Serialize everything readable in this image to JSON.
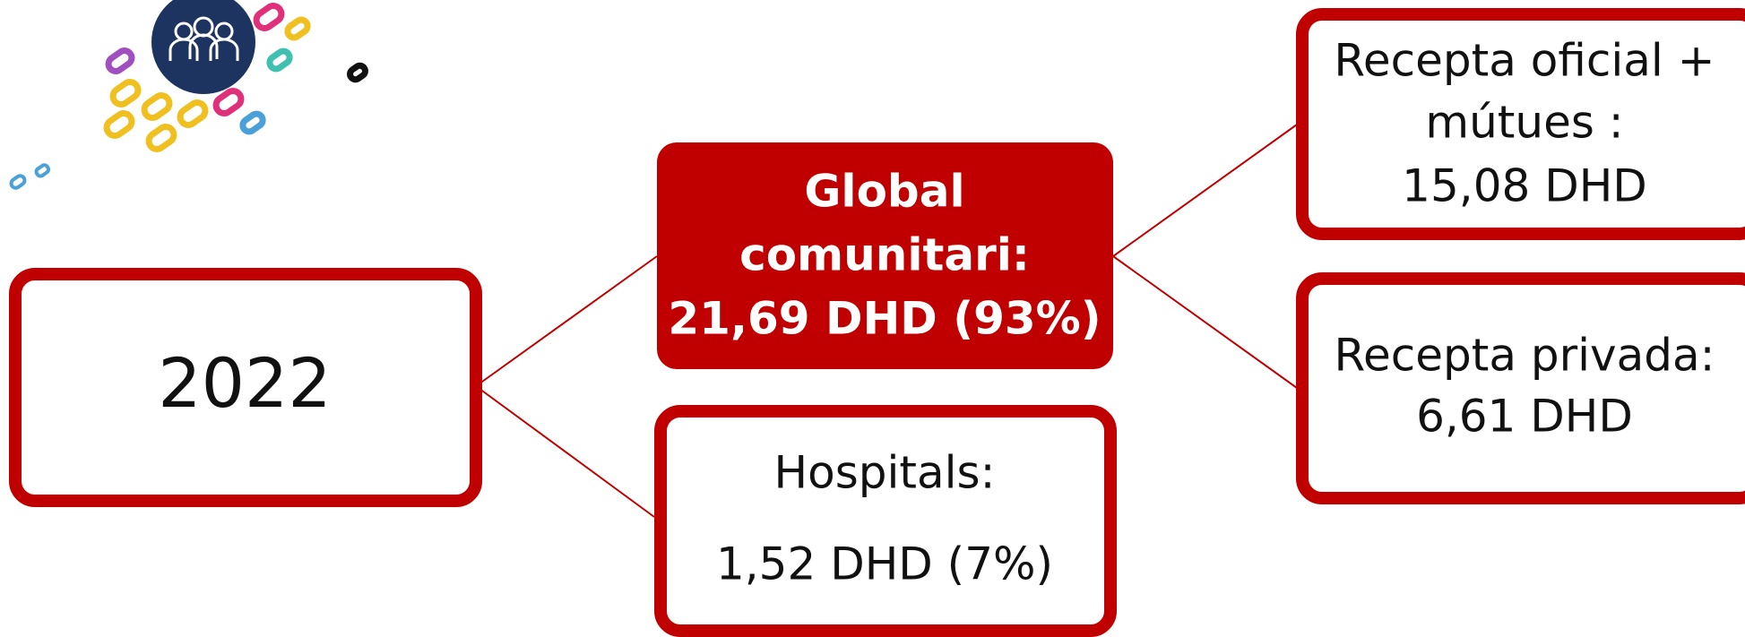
{
  "nodes": [
    {
      "lines": [
        "2022"
      ]
    },
    {
      "lines": [
        "Global",
        "comunitari:",
        "21,69 DHD (93%)"
      ]
    },
    {
      "lines": [
        "Hospitals:",
        "1,52 DHD (7%)"
      ]
    },
    {
      "lines": [
        "Recepta oficial +",
        "mútues :",
        "15,08 DHD"
      ]
    },
    {
      "lines": [
        "Recepta privada:",
        "6,61 DHD"
      ]
    }
  ]
}
